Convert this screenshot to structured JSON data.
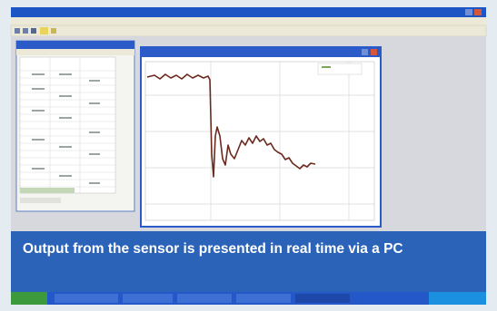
{
  "caption": "Output from the sensor is presented in real time via a PC"
}
